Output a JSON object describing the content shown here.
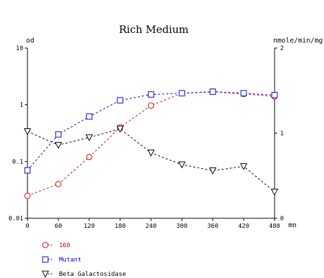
{
  "chart_data": {
    "type": "line",
    "title": "Rich Medium",
    "x": [
      0,
      60,
      120,
      180,
      240,
      300,
      360,
      420,
      480
    ],
    "x_unit": "mn",
    "x_ticks": [
      "0",
      "60",
      "120",
      "180",
      "240",
      "300",
      "360",
      "420",
      "480"
    ],
    "xlim": [
      0,
      480
    ],
    "y_left": {
      "label": "od",
      "scale": "log",
      "ylim": [
        0.01,
        10
      ],
      "ticks": [
        "10",
        "1",
        "0.1",
        "0.01"
      ]
    },
    "y_right": {
      "label": "nmole/min/mg",
      "scale": "linear",
      "ylim": [
        0,
        2
      ],
      "ticks": [
        "2",
        "1",
        "0"
      ]
    },
    "grid": false,
    "legend_position": "bottom-left",
    "series": [
      {
        "name": "168",
        "axis": "left",
        "color": "#dd0000",
        "marker": "circle-icon",
        "values": [
          0.025,
          0.04,
          0.12,
          0.4,
          0.97,
          1.6,
          1.7,
          1.55,
          1.4
        ]
      },
      {
        "name": "Mutant",
        "axis": "left",
        "color": "#0000cc",
        "marker": "square-icon",
        "values": [
          0.07,
          0.3,
          0.62,
          1.2,
          1.52,
          1.6,
          1.7,
          1.6,
          1.48
        ]
      },
      {
        "name": "Beta Galactosidase",
        "axis": "right",
        "color": "#000000",
        "marker": "triangle-down-icon",
        "values": [
          1.02,
          0.86,
          0.95,
          1.05,
          0.77,
          0.63,
          0.56,
          0.61,
          0.31
        ]
      }
    ]
  }
}
